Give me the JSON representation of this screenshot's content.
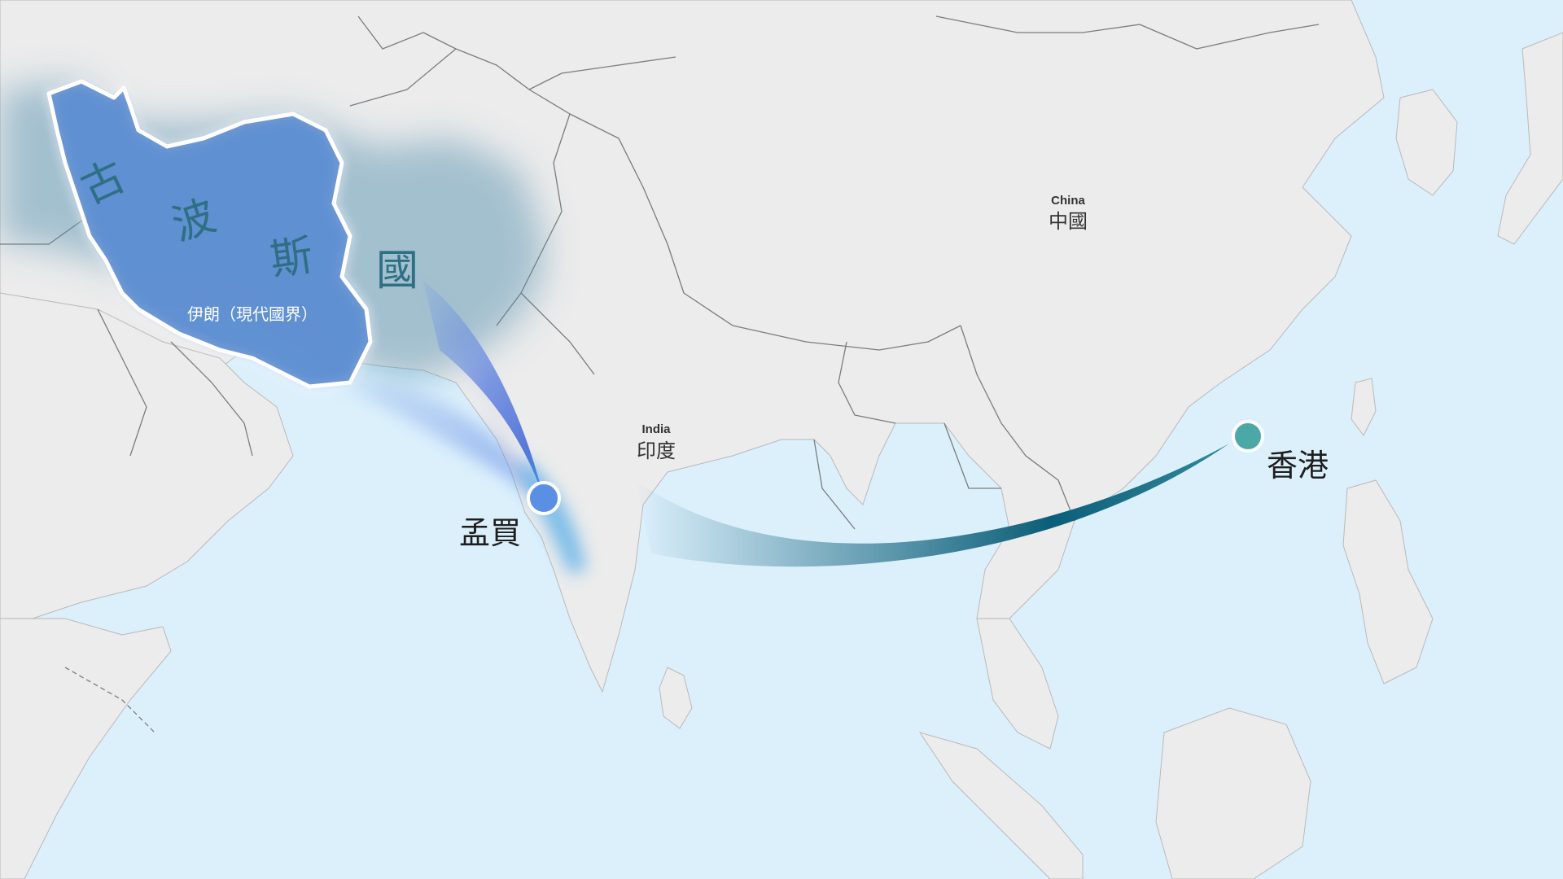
{
  "colors": {
    "ocean": "#dcf0fc",
    "land": "#ececec",
    "border": "#7c7c7c",
    "persia_fill": "#5e8fd2",
    "persia_label": "#2f6f84",
    "route_persia": "#3f63d6",
    "route_hongkong": "#0b5e79",
    "mumbai_marker": "#5b8fe3",
    "hongkong_marker": "#4aa9a7"
  },
  "region": {
    "persia": {
      "chars": [
        "古",
        "波",
        "斯",
        "國"
      ],
      "subtitle": "伊朗（現代國界）"
    }
  },
  "labels": {
    "china_en": "China",
    "china_zh": "中國",
    "india_en": "India",
    "india_zh": "印度"
  },
  "places": {
    "mumbai": {
      "name": "孟買",
      "icon": "circle-marker"
    },
    "hongkong": {
      "name": "香港",
      "icon": "circle-marker"
    }
  },
  "routes": [
    {
      "from": "古波斯國",
      "to": "孟買"
    },
    {
      "from": "孟買",
      "to": "香港"
    }
  ]
}
